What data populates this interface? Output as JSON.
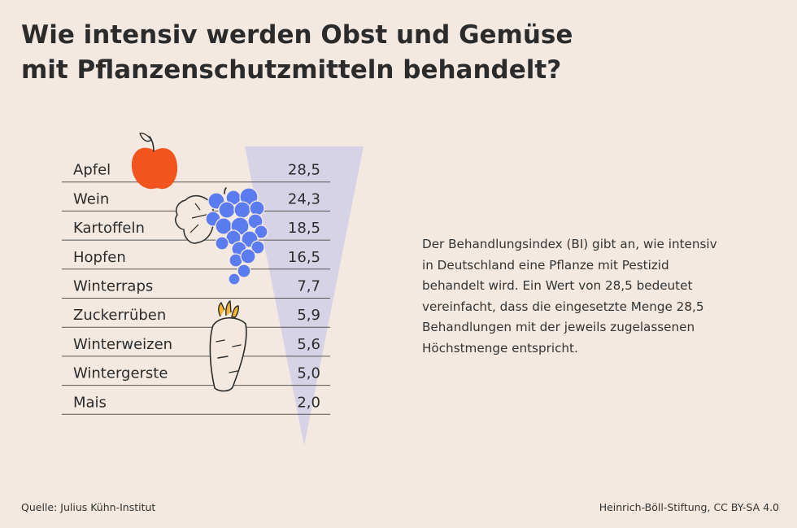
{
  "title": {
    "line1": "Wie intensiv werden Obst und Gemüse",
    "line2": "mit Pflanzenschutzmitteln behandelt?"
  },
  "description": "Der Behandlungsindex (BI) gibt an, wie intensiv in Deutschland eine Pflanze mit Pestizid behandelt wird. Ein Wert von 28,5 bedeutet vereinfacht, dass die eingesetzte Menge 28,5 Behandlungen mit der jeweils zugelassenen Höchstmenge entspricht.",
  "footer": {
    "source": "Quelle: Julius Kühn-Institut",
    "credit": "Heinrich-Böll-Stiftung, CC BY-SA 4.0"
  },
  "colors": {
    "background": "#f4e9e0",
    "triangle": "#d7d3e6",
    "apple": "#f2541d",
    "grapes": "#5b7cf0",
    "carrot_top": "#f5b731",
    "line": "#555555"
  },
  "icons": [
    "apple-icon",
    "grapes-icon",
    "vine-leaf-icon",
    "carrot-icon"
  ],
  "chart_data": {
    "type": "table",
    "categories": [
      "Apfel",
      "Wein",
      "Kartoffeln",
      "Hopfen",
      "Winterraps",
      "Zuckerrüben",
      "Winterweizen",
      "Wintergerste",
      "Mais"
    ],
    "value_labels": [
      "28,5",
      "24,3",
      "18,5",
      "16,5",
      "7,7",
      "5,9",
      "5,6",
      "5,0",
      "2,0"
    ],
    "values": [
      28.5,
      24.3,
      18.5,
      16.5,
      7.7,
      5.9,
      5.6,
      5.0,
      2.0
    ]
  }
}
